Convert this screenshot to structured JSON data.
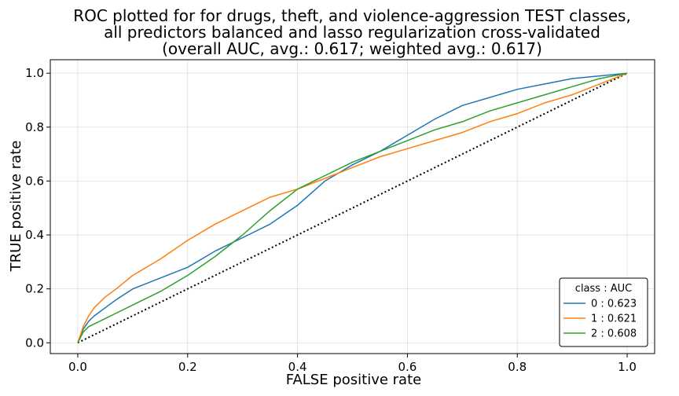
{
  "chart_data": {
    "type": "line",
    "title": [
      "ROC plotted for for drugs, theft, and violence-aggression TEST classes,",
      "all predictors balanced and lasso regularization cross-validated",
      "(overall AUC, avg.: 0.617; weighted avg.: 0.617)"
    ],
    "xlabel": "FALSE positive rate",
    "ylabel": "TRUE positive rate",
    "xlim": [
      -0.05,
      1.05
    ],
    "ylim": [
      -0.04,
      1.05
    ],
    "xticks": [
      "0.0",
      "0.2",
      "0.4",
      "0.6",
      "0.8",
      "1.0"
    ],
    "yticks": [
      "0.0",
      "0.2",
      "0.4",
      "0.6",
      "0.8",
      "1.0"
    ],
    "grid": true,
    "legend": {
      "title": "class : AUC",
      "placement": "lower-right",
      "entries": [
        "0 : 0.623",
        "1 : 0.621",
        "2 : 0.608"
      ]
    },
    "series": [
      {
        "name": "0 : 0.623",
        "color": "#1f77b4",
        "x": [
          0,
          0.01,
          0.02,
          0.03,
          0.05,
          0.07,
          0.1,
          0.15,
          0.2,
          0.25,
          0.3,
          0.35,
          0.4,
          0.45,
          0.5,
          0.55,
          0.6,
          0.65,
          0.7,
          0.75,
          0.8,
          0.85,
          0.9,
          0.95,
          1.0
        ],
        "y": [
          0,
          0.05,
          0.08,
          0.1,
          0.13,
          0.16,
          0.2,
          0.24,
          0.28,
          0.34,
          0.39,
          0.44,
          0.51,
          0.6,
          0.66,
          0.71,
          0.77,
          0.83,
          0.88,
          0.91,
          0.94,
          0.96,
          0.98,
          0.99,
          1.0
        ]
      },
      {
        "name": "1 : 0.621",
        "color": "#ff7f0e",
        "x": [
          0,
          0.01,
          0.02,
          0.03,
          0.05,
          0.07,
          0.1,
          0.15,
          0.2,
          0.25,
          0.3,
          0.35,
          0.4,
          0.45,
          0.5,
          0.55,
          0.6,
          0.65,
          0.7,
          0.75,
          0.8,
          0.85,
          0.9,
          0.95,
          1.0
        ],
        "y": [
          0,
          0.06,
          0.1,
          0.13,
          0.17,
          0.2,
          0.25,
          0.31,
          0.38,
          0.44,
          0.49,
          0.54,
          0.57,
          0.61,
          0.65,
          0.69,
          0.72,
          0.75,
          0.78,
          0.82,
          0.85,
          0.89,
          0.92,
          0.96,
          1.0
        ]
      },
      {
        "name": "2 : 0.608",
        "color": "#2ca02c",
        "x": [
          0,
          0.01,
          0.02,
          0.03,
          0.05,
          0.07,
          0.1,
          0.15,
          0.2,
          0.25,
          0.3,
          0.35,
          0.4,
          0.45,
          0.5,
          0.55,
          0.6,
          0.65,
          0.7,
          0.75,
          0.8,
          0.85,
          0.9,
          0.95,
          1.0
        ],
        "y": [
          0,
          0.04,
          0.06,
          0.07,
          0.09,
          0.11,
          0.14,
          0.19,
          0.25,
          0.32,
          0.4,
          0.49,
          0.57,
          0.62,
          0.67,
          0.71,
          0.75,
          0.79,
          0.82,
          0.86,
          0.89,
          0.92,
          0.95,
          0.98,
          1.0
        ]
      }
    ],
    "reference_line": {
      "style": "dotted",
      "color": "#000000",
      "x": [
        0,
        1
      ],
      "y": [
        0,
        1
      ]
    }
  }
}
